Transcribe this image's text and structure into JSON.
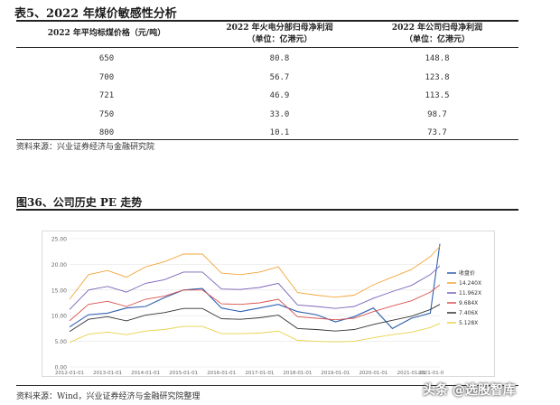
{
  "table": {
    "title": "表5、2022 年煤价敏感性分析",
    "headers": [
      "2022 年平均标煤价格（元/吨）",
      "2022 年火电分部归母净利润",
      "2022 年公司归母净利润"
    ],
    "header_units": [
      "",
      "（单位：亿港元）",
      "（单位：亿港元）"
    ],
    "rows": [
      [
        "650",
        "80.8",
        "148.8"
      ],
      [
        "700",
        "56.7",
        "123.8"
      ],
      [
        "721",
        "46.9",
        "113.5"
      ],
      [
        "750",
        "33.0",
        "98.7"
      ],
      [
        "800",
        "10.1",
        "73.7"
      ]
    ],
    "source": "资料来源：兴业证券经济与金融研究院"
  },
  "figure": {
    "title": "图36、公司历史 PE 走势",
    "source": "资料来源：Wind，兴业证券经济与金融研究院整理"
  },
  "watermark": "头条 @选股智库",
  "chart_data": {
    "type": "line",
    "title": "",
    "xlabel": "",
    "ylabel": "",
    "x": [
      "2012-01-01",
      "2012-07-01",
      "2013-01-01",
      "2013-07-01",
      "2014-01-01",
      "2014-07-01",
      "2015-01-01",
      "2015-07-01",
      "2016-01-01",
      "2016-07-01",
      "2017-01-01",
      "2017-07-01",
      "2018-01-01",
      "2018-07-01",
      "2019-01-01",
      "2019-07-01",
      "2020-01-01",
      "2020-07-01",
      "2021-01-01",
      "2021-07-01",
      "2021-10-01"
    ],
    "x_ticks": [
      "2012-01-01",
      "2013-01-01",
      "2014-01-01",
      "2015-01-01",
      "2016-01-01",
      "2017-01-01",
      "2018-01-01",
      "2019-01-01",
      "2020-01-01",
      "2021-01-01"
    ],
    "x_tick_partial": "2021-01-0",
    "ylim": [
      0,
      25
    ],
    "y_ticks": [
      "0.00",
      "5.00",
      "10.00",
      "15.00",
      "20.00",
      "25.00"
    ],
    "legend_position": "right",
    "series": [
      {
        "name": "收盘价",
        "color": "#2f5fae",
        "values": [
          7.8,
          10.2,
          10.5,
          11.5,
          11.8,
          13.5,
          15.0,
          15.3,
          11.5,
          10.8,
          11.5,
          12.2,
          10.8,
          10.2,
          8.8,
          9.8,
          11.5,
          7.5,
          9.5,
          10.5,
          24.0
        ]
      },
      {
        "name": "14.240X",
        "color": "#f2a63b",
        "values": [
          13.2,
          18.0,
          18.8,
          17.5,
          19.5,
          20.5,
          22.0,
          22.0,
          18.3,
          18.0,
          18.5,
          19.5,
          14.5,
          14.0,
          13.6,
          14.0,
          16.0,
          17.5,
          19.0,
          21.5,
          23.5
        ]
      },
      {
        "name": "11.962X",
        "color": "#7b63b8",
        "values": [
          11.2,
          15.0,
          15.7,
          14.6,
          16.3,
          17.0,
          18.5,
          18.5,
          15.2,
          15.1,
          15.5,
          16.3,
          12.1,
          11.8,
          11.4,
          11.8,
          13.4,
          14.7,
          15.9,
          18.0,
          19.7
        ]
      },
      {
        "name": "9.684X",
        "color": "#d9534f",
        "values": [
          9.0,
          12.2,
          12.8,
          11.8,
          13.2,
          13.8,
          15.0,
          15.0,
          12.3,
          12.2,
          12.5,
          13.2,
          9.8,
          9.5,
          9.2,
          9.5,
          10.8,
          11.9,
          12.9,
          14.6,
          16.0
        ]
      },
      {
        "name": "7.406X",
        "color": "#333333",
        "values": [
          6.9,
          9.3,
          9.8,
          9.0,
          10.1,
          10.6,
          11.4,
          11.4,
          9.4,
          9.3,
          9.6,
          10.1,
          7.5,
          7.3,
          7.0,
          7.3,
          8.3,
          9.1,
          9.9,
          11.2,
          12.2
        ]
      },
      {
        "name": "5.128X",
        "color": "#e8d24a",
        "values": [
          4.8,
          6.4,
          6.8,
          6.3,
          7.0,
          7.3,
          7.9,
          7.9,
          6.5,
          6.5,
          6.6,
          7.0,
          5.2,
          5.0,
          4.9,
          5.0,
          5.7,
          6.3,
          6.8,
          7.7,
          8.5
        ]
      }
    ]
  }
}
